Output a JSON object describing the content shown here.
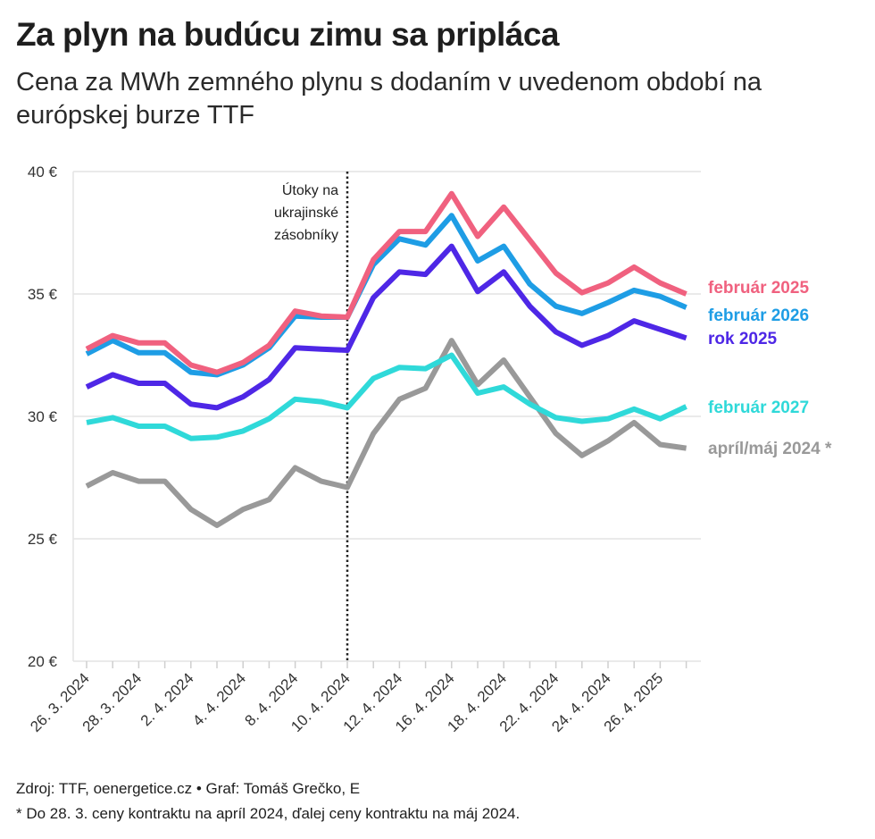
{
  "title": "Za plyn na budúcu zimu sa pripláca",
  "subtitle": "Cena za MWh zemného plynu s dodaním v uvedenom období na európskej burze TTF",
  "footer": {
    "source": "Zdroj: TTF, oenergetice.cz • Graf: Tomáš Grečko, E",
    "note": "* Do 28. 3. ceny kontraktu na apríl 2024, ďalej ceny kontraktu na máj 2024."
  },
  "chart_data": {
    "type": "line",
    "ylim": [
      20,
      40
    ],
    "yticks": [
      20,
      25,
      30,
      35,
      40
    ],
    "ytick_labels": [
      "20 €",
      "25 €",
      "30 €",
      "35 €",
      "40 €"
    ],
    "xtick_labels": [
      "26. 3. 2024",
      "28. 3. 2024",
      "2. 4. 2024",
      "4. 4. 2024",
      "8. 4. 2024",
      "10. 4. 2024",
      "12. 4. 2024",
      "16. 4. 2024",
      "18. 4. 2024",
      "22. 4. 2024",
      "24. 4. 2024",
      "26. 4. 2025"
    ],
    "n_points": 24,
    "annotation": {
      "lines": [
        "Útoky na",
        "ukrajinské",
        "zásobníky"
      ],
      "x_index": 10
    },
    "series": [
      {
        "name": "apríl/máj 2024 *",
        "color": "#999999",
        "values": [
          27.15,
          27.7,
          27.35,
          27.35,
          26.2,
          25.55,
          26.2,
          26.6,
          27.9,
          27.35,
          27.1,
          29.3,
          30.7,
          31.15,
          33.1,
          31.3,
          32.3,
          30.8,
          29.3,
          28.4,
          29.0,
          29.75,
          28.85,
          28.7
        ]
      },
      {
        "name": "február 2027",
        "color": "#2fd9d9",
        "values": [
          29.75,
          29.95,
          29.6,
          29.6,
          29.1,
          29.15,
          29.4,
          29.9,
          30.7,
          30.6,
          30.35,
          31.55,
          32.0,
          31.95,
          32.5,
          30.95,
          31.2,
          30.5,
          29.95,
          29.8,
          29.9,
          30.3,
          29.9,
          30.4
        ]
      },
      {
        "name": "rok 2025",
        "color": "#4e27e6",
        "values": [
          31.2,
          31.7,
          31.35,
          31.35,
          30.5,
          30.35,
          30.8,
          31.5,
          32.8,
          32.75,
          32.7,
          34.85,
          35.9,
          35.8,
          36.95,
          35.1,
          35.9,
          34.5,
          33.45,
          32.9,
          33.3,
          33.9,
          33.55,
          33.2
        ]
      },
      {
        "name": "február 2026",
        "color": "#1e9de5",
        "values": [
          32.55,
          33.1,
          32.6,
          32.6,
          31.8,
          31.7,
          32.1,
          32.8,
          34.1,
          34.05,
          34.05,
          36.2,
          37.25,
          37.0,
          38.2,
          36.35,
          36.95,
          35.4,
          34.5,
          34.2,
          34.65,
          35.15,
          34.9,
          34.45
        ]
      },
      {
        "name": "február 2025",
        "color": "#f0617f",
        "values": [
          32.75,
          33.3,
          33.0,
          33.0,
          32.1,
          31.8,
          32.2,
          32.9,
          34.3,
          34.1,
          34.05,
          36.4,
          37.55,
          37.55,
          39.1,
          37.35,
          38.55,
          37.2,
          35.85,
          35.05,
          35.45,
          36.1,
          35.45,
          35.0
        ]
      }
    ],
    "legend_order": [
      "február 2025",
      "február 2026",
      "rok 2025",
      "február 2027",
      "apríl/máj 2024 *"
    ]
  }
}
